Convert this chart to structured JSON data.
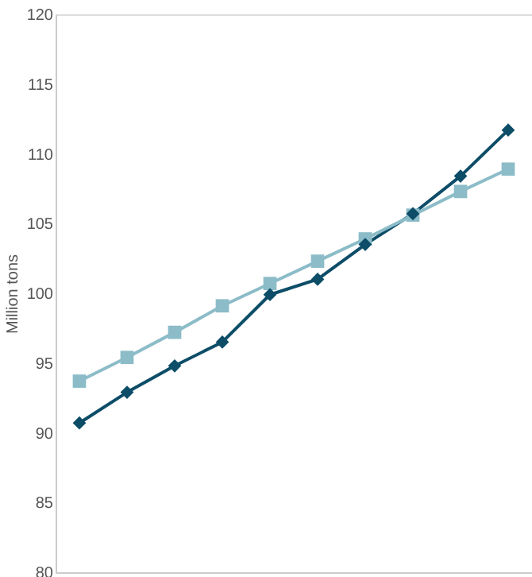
{
  "chart_data": {
    "type": "line",
    "ylabel": "Million tons",
    "categories": [
      null,
      null,
      null,
      null,
      null,
      null,
      null,
      null,
      null,
      null
    ],
    "ylim": [
      80,
      120
    ],
    "yticks": [
      80,
      85,
      90,
      95,
      100,
      105,
      110,
      115,
      120
    ],
    "grid": false,
    "line_style": "solid",
    "series": [
      {
        "color": "#0d4d68",
        "marker": "diamond",
        "values": [
          90.7,
          92.9,
          94.8,
          96.5,
          99.9,
          101.0,
          103.5,
          105.7,
          108.4,
          111.7
        ]
      },
      {
        "color": "#8bbcc8",
        "marker": "square",
        "values": [
          93.7,
          95.4,
          97.2,
          99.1,
          100.7,
          102.3,
          103.9,
          105.6,
          107.3,
          108.9
        ]
      }
    ]
  }
}
